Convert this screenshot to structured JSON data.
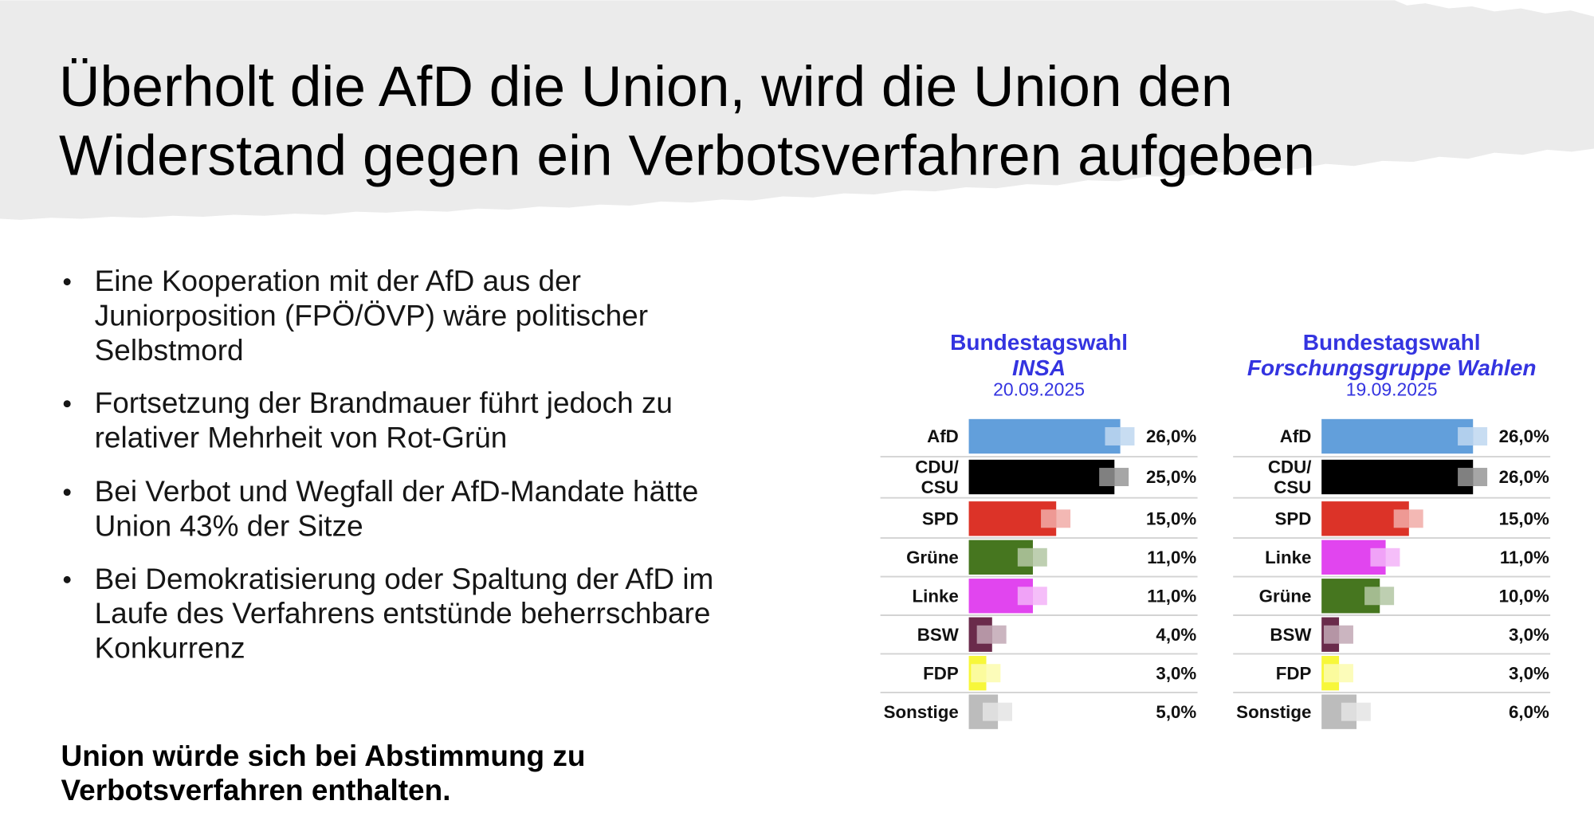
{
  "slide": {
    "title_lines": [
      "Überholt die AfD die Union, wird die Union den",
      "Widerstand gegen ein Verbotsverfahren aufgeben"
    ],
    "bullets": [
      [
        "Eine Kooperation mit der AfD aus der",
        "Juniorposition (FPÖ/ÖVP) wäre politischer",
        "Selbstmord"
      ],
      [
        "Fortsetzung der Brandmauer führt jedoch zu",
        "relativer Mehrheit von Rot-Grün"
      ],
      [
        "Bei Verbot und Wegfall der AfD-Mandate hätte",
        "Union 43% der Sitze"
      ],
      [
        "Bei Demokratisierung oder Spaltung der AfD im",
        "Laufe des Verfahrens entstünde beherrschbare",
        "Konkurrenz"
      ]
    ],
    "conclusion_lines": [
      "Union würde sich bei Abstimmung zu",
      "Verbotsverfahren enthalten."
    ]
  },
  "colors": {
    "background_band": "#ebebeb",
    "chart_heading": "#3434e0",
    "parties": {
      "AfD": "#629fdb",
      "CDU/CSU": "#000000",
      "SPD": "#dc3328",
      "Grüne": "#46761f",
      "Linke": "#e145ef",
      "BSW": "#6a2b4b",
      "FDP": "#f7f73a",
      "Sonstige": "#bcbcbc"
    }
  },
  "chart_data": [
    {
      "type": "bar",
      "orientation": "horizontal",
      "title": "Bundestagswahl",
      "subtitle": "INSA",
      "date": "20.09.2025",
      "categories": [
        "AfD",
        "CDU/CSU",
        "SPD",
        "Grüne",
        "Linke",
        "BSW",
        "FDP",
        "Sonstige"
      ],
      "values": [
        26,
        25,
        15,
        11,
        11,
        4,
        3,
        5
      ],
      "value_labels": [
        "26,0%",
        "25,0%",
        "15,0%",
        "11,0%",
        "11,0%",
        "4,0%",
        "3,0%",
        "5,0%"
      ]
    },
    {
      "type": "bar",
      "orientation": "horizontal",
      "title": "Bundestagswahl",
      "subtitle": "Forschungsgruppe Wahlen",
      "date": "19.09.2025",
      "categories": [
        "AfD",
        "CDU/CSU",
        "SPD",
        "Linke",
        "Grüne",
        "BSW",
        "FDP",
        "Sonstige"
      ],
      "values": [
        26,
        26,
        15,
        11,
        10,
        3,
        3,
        6
      ],
      "value_labels": [
        "26,0%",
        "26,0%",
        "15,0%",
        "11,0%",
        "10,0%",
        "3,0%",
        "3,0%",
        "6,0%"
      ]
    }
  ]
}
